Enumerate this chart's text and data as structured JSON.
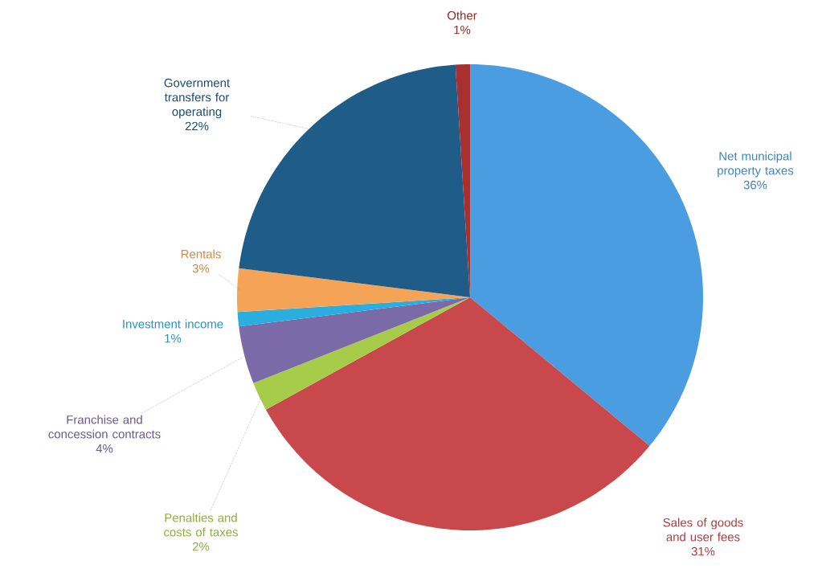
{
  "chart_data": {
    "type": "pie",
    "categories": [
      "Net municipal property taxes",
      "Sales of goods and user fees",
      "Penalties and costs of taxes",
      "Franchise and concession contracts",
      "Investment income",
      "Rentals",
      "Government transfers for operating",
      "Other"
    ],
    "values": [
      36,
      31,
      2,
      4,
      1,
      3,
      22,
      1
    ],
    "value_labels": [
      "36%",
      "31%",
      "2%",
      "4%",
      "1%",
      "3%",
      "22%",
      "1%"
    ],
    "colors": [
      "#4a9de0",
      "#c9484b",
      "#a6cc4a",
      "#7a6aa8",
      "#2aaee0",
      "#f5a457",
      "#1f5c87",
      "#a8302e"
    ]
  }
}
